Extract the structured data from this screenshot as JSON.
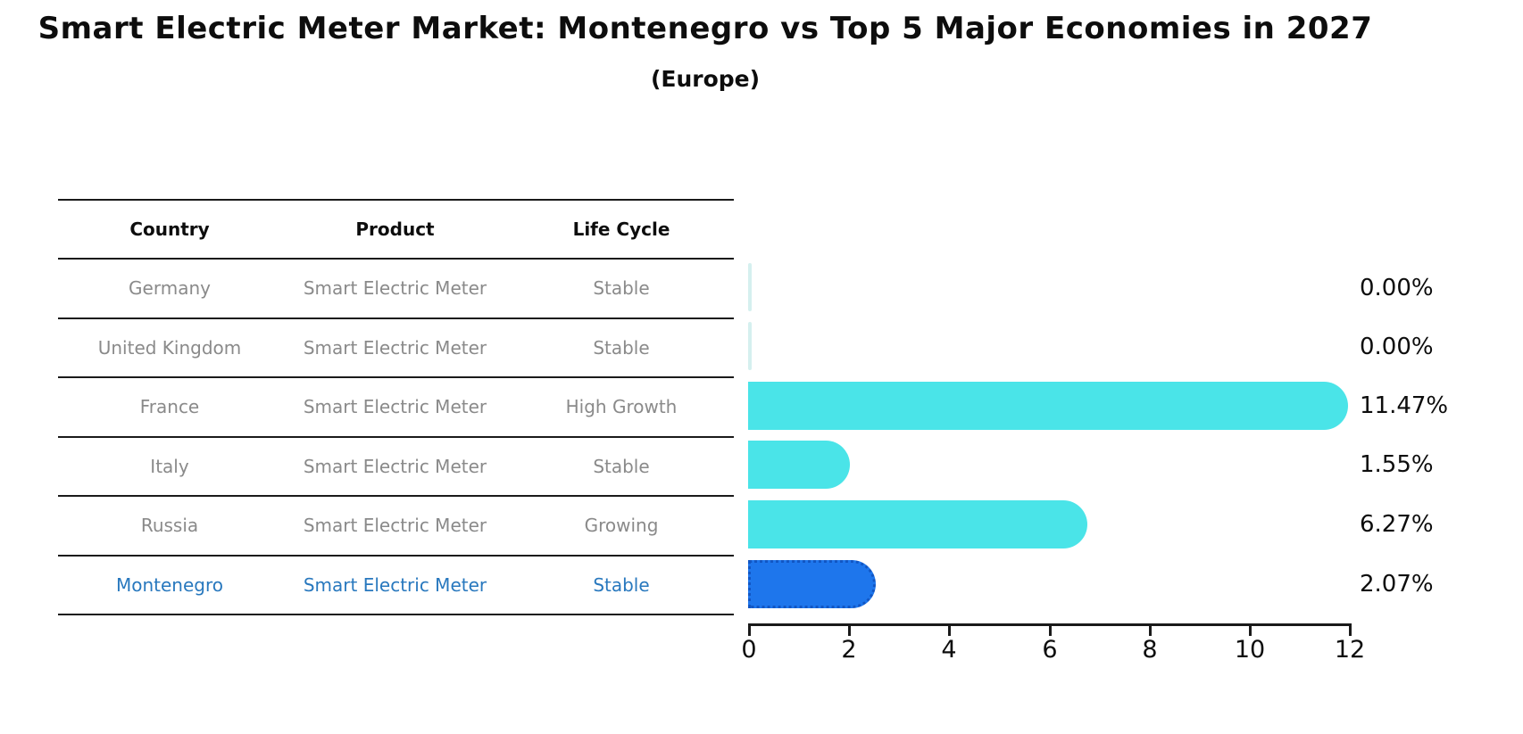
{
  "title": "Smart Electric Meter Market: Montenegro vs Top 5 Major Economies in 2027",
  "subtitle": "(Europe)",
  "table": {
    "headers": [
      "Country",
      "Product",
      "Life Cycle"
    ],
    "rows": [
      {
        "country": "Germany",
        "product": "Smart Electric Meter",
        "life_cycle": "Stable"
      },
      {
        "country": "United Kingdom",
        "product": "Smart Electric Meter",
        "life_cycle": "Stable"
      },
      {
        "country": "France",
        "product": "Smart Electric Meter",
        "life_cycle": "High Growth"
      },
      {
        "country": "Italy",
        "product": "Smart Electric Meter",
        "life_cycle": "Stable"
      },
      {
        "country": "Russia",
        "product": "Smart Electric Meter",
        "life_cycle": "Growing"
      },
      {
        "country": "Montenegro",
        "product": "Smart Electric Meter",
        "life_cycle": "Stable"
      }
    ]
  },
  "chart_data": {
    "type": "bar",
    "orientation": "horizontal",
    "title": "Smart Electric Meter Market: Montenegro vs Top 5 Major Economies in 2027",
    "subtitle": "(Europe)",
    "categories": [
      "Germany",
      "United Kingdom",
      "France",
      "Italy",
      "Russia",
      "Montenegro"
    ],
    "values": [
      0.0,
      0.0,
      11.47,
      1.55,
      6.27,
      2.07
    ],
    "value_labels": [
      "0.00%",
      "0.00%",
      "11.47%",
      "1.55%",
      "6.27%",
      "2.07%"
    ],
    "xlabel": "",
    "ylabel": "",
    "xlim": [
      0,
      12
    ],
    "xticks": [
      "0",
      "2",
      "4",
      "6",
      "8",
      "10",
      "12"
    ],
    "grid": "off",
    "legend": "none",
    "bar_color": "#4AE4E8",
    "zero_bar_color": "#D5F0EF",
    "highlight_index": 5,
    "highlight_color": "#1E76EC",
    "highlight_border_color": "#1156C4",
    "highlight_text_color": "#2878BE"
  }
}
